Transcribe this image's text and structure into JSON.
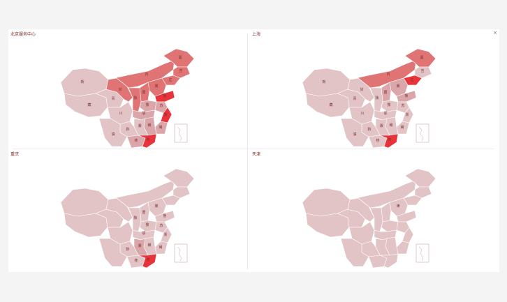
{
  "panels": [
    {
      "title": "北京服务中心",
      "regions": [
        {
          "id": "xinjiang",
          "label": "新",
          "level": 1
        },
        {
          "id": "tibet",
          "label": "藏",
          "level": 1
        },
        {
          "id": "qinghai",
          "label": "青",
          "level": 1
        },
        {
          "id": "gansu",
          "label": "甘",
          "level": 3
        },
        {
          "id": "neimenggu",
          "label": "内",
          "level": 3
        },
        {
          "id": "heilongjiang",
          "label": "黑",
          "level": 3
        },
        {
          "id": "jilin",
          "label": "吉",
          "level": 3
        },
        {
          "id": "liaoning",
          "label": "辽",
          "level": 3
        },
        {
          "id": "hebei",
          "label": "冀",
          "level": 3
        },
        {
          "id": "shandong",
          "label": "鲁",
          "level": 4
        },
        {
          "id": "shanxi",
          "label": "晋",
          "level": 3
        },
        {
          "id": "shaanxi",
          "label": "陕",
          "level": 3
        },
        {
          "id": "henan",
          "label": "豫",
          "level": 2
        },
        {
          "id": "sichuan",
          "label": "川",
          "level": 1
        },
        {
          "id": "hubei",
          "label": "鄂",
          "level": 2
        },
        {
          "id": "jiangsu",
          "label": "苏",
          "level": 2
        },
        {
          "id": "zhejiang",
          "label": "浙",
          "level": 4
        },
        {
          "id": "fujian",
          "label": "闽",
          "level": 2
        },
        {
          "id": "jiangxi",
          "label": "赣",
          "level": 2
        },
        {
          "id": "hunan",
          "label": "湘",
          "level": 1
        },
        {
          "id": "guizhou",
          "label": "黔",
          "level": 1
        },
        {
          "id": "yunnan",
          "label": "滇",
          "level": 1
        },
        {
          "id": "guangxi",
          "label": "桂",
          "level": 2
        },
        {
          "id": "guangdong",
          "label": "粤",
          "level": 4
        },
        {
          "id": "hainan",
          "label": "琼",
          "level": 4
        }
      ]
    },
    {
      "title": "上海",
      "regions": [
        {
          "id": "xinjiang",
          "label": "新",
          "level": 1
        },
        {
          "id": "tibet",
          "label": "藏",
          "level": 1
        },
        {
          "id": "qinghai",
          "label": "青",
          "level": 1
        },
        {
          "id": "gansu",
          "label": "甘",
          "level": 1
        },
        {
          "id": "neimenggu",
          "label": "内",
          "level": 3
        },
        {
          "id": "heilongjiang",
          "label": "黑",
          "level": 3
        },
        {
          "id": "jilin",
          "label": "吉",
          "level": 1
        },
        {
          "id": "liaoning",
          "label": "辽",
          "level": 4
        },
        {
          "id": "hebei",
          "label": "冀",
          "level": 2
        },
        {
          "id": "shandong",
          "label": "鲁",
          "level": 2
        },
        {
          "id": "shanxi",
          "label": "晋",
          "level": 2
        },
        {
          "id": "shaanxi",
          "label": "陕",
          "level": 1
        },
        {
          "id": "henan",
          "label": "豫",
          "level": 1
        },
        {
          "id": "sichuan",
          "label": "川",
          "level": 1
        },
        {
          "id": "hubei",
          "label": "鄂",
          "level": 1
        },
        {
          "id": "jiangsu",
          "label": "苏",
          "level": 1
        },
        {
          "id": "zhejiang",
          "label": "浙",
          "level": 1
        },
        {
          "id": "fujian",
          "label": "闽",
          "level": 1
        },
        {
          "id": "jiangxi",
          "label": "赣",
          "level": 1
        },
        {
          "id": "hunan",
          "label": "湘",
          "level": 1
        },
        {
          "id": "guizhou",
          "label": "黔",
          "level": 1
        },
        {
          "id": "yunnan",
          "label": "滇",
          "level": 1
        },
        {
          "id": "guangxi",
          "label": "桂",
          "level": 1
        },
        {
          "id": "guangdong",
          "label": "粤",
          "level": 4
        },
        {
          "id": "hainan",
          "label": "琼",
          "level": 2
        }
      ]
    },
    {
      "title": "重庆",
      "regions": [
        {
          "id": "xinjiang",
          "label": "",
          "level": 1
        },
        {
          "id": "tibet",
          "label": "",
          "level": 1
        },
        {
          "id": "qinghai",
          "label": "",
          "level": 1
        },
        {
          "id": "gansu",
          "label": "",
          "level": 1
        },
        {
          "id": "neimenggu",
          "label": "",
          "level": 1
        },
        {
          "id": "heilongjiang",
          "label": "",
          "level": 1
        },
        {
          "id": "jilin",
          "label": "",
          "level": 1
        },
        {
          "id": "liaoning",
          "label": "",
          "level": 1
        },
        {
          "id": "hebei",
          "label": "冀",
          "level": 1
        },
        {
          "id": "shandong",
          "label": "鲁",
          "level": 1
        },
        {
          "id": "shanxi",
          "label": "晋",
          "level": 1
        },
        {
          "id": "shaanxi",
          "label": "陕",
          "level": 1
        },
        {
          "id": "henan",
          "label": "豫",
          "level": 1
        },
        {
          "id": "sichuan",
          "label": "",
          "level": 1
        },
        {
          "id": "hubei",
          "label": "鄂",
          "level": 1
        },
        {
          "id": "jiangsu",
          "label": "苏",
          "level": 1
        },
        {
          "id": "zhejiang",
          "label": "浙",
          "level": 1
        },
        {
          "id": "fujian",
          "label": "闽",
          "level": 1
        },
        {
          "id": "jiangxi",
          "label": "赣",
          "level": 1
        },
        {
          "id": "hunan",
          "label": "湘",
          "level": 2
        },
        {
          "id": "guizhou",
          "label": "黔",
          "level": 1
        },
        {
          "id": "yunnan",
          "label": "",
          "level": 1
        },
        {
          "id": "guangxi",
          "label": "桂",
          "level": 1
        },
        {
          "id": "guangdong",
          "label": "粤",
          "level": 4
        },
        {
          "id": "hainan",
          "label": "琼",
          "level": 1
        }
      ]
    },
    {
      "title": "天津",
      "regions": [
        {
          "id": "xinjiang",
          "label": "",
          "level": 1
        },
        {
          "id": "tibet",
          "label": "",
          "level": 1
        },
        {
          "id": "qinghai",
          "label": "",
          "level": 1
        },
        {
          "id": "gansu",
          "label": "",
          "level": 1
        },
        {
          "id": "neimenggu",
          "label": "",
          "level": 1
        },
        {
          "id": "heilongjiang",
          "label": "",
          "level": 1
        },
        {
          "id": "jilin",
          "label": "",
          "level": 1
        },
        {
          "id": "liaoning",
          "label": "",
          "level": 1
        },
        {
          "id": "hebei",
          "label": "津",
          "level": 1
        },
        {
          "id": "shandong",
          "label": "",
          "level": 1
        },
        {
          "id": "shanxi",
          "label": "",
          "level": 1
        },
        {
          "id": "shaanxi",
          "label": "",
          "level": 1
        },
        {
          "id": "henan",
          "label": "",
          "level": 1
        },
        {
          "id": "sichuan",
          "label": "",
          "level": 1
        },
        {
          "id": "hubei",
          "label": "",
          "level": 1
        },
        {
          "id": "jiangsu",
          "label": "",
          "level": 1
        },
        {
          "id": "zhejiang",
          "label": "",
          "level": 1
        },
        {
          "id": "fujian",
          "label": "",
          "level": 1
        },
        {
          "id": "jiangxi",
          "label": "",
          "level": 1
        },
        {
          "id": "hunan",
          "label": "",
          "level": 1
        },
        {
          "id": "guizhou",
          "label": "",
          "level": 1
        },
        {
          "id": "yunnan",
          "label": "",
          "level": 1
        },
        {
          "id": "guangxi",
          "label": "",
          "level": 1
        },
        {
          "id": "guangdong",
          "label": "",
          "level": 1
        },
        {
          "id": "hainan",
          "label": "",
          "level": 1
        }
      ]
    }
  ],
  "level_colors": {
    "1": "#e2c3c6",
    "2": "#dba6aa",
    "3": "#e07373",
    "4": "#e8333a"
  },
  "close_label": "×"
}
